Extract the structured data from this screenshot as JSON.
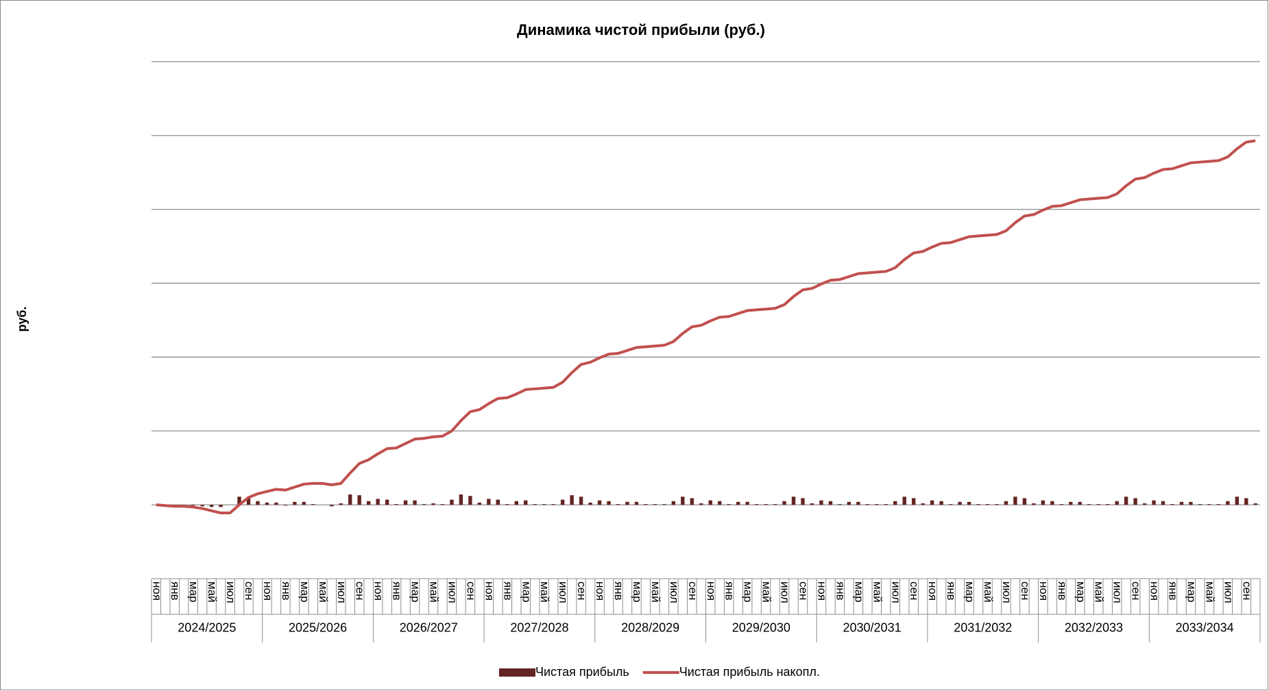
{
  "chart_data": {
    "type": "bar-line",
    "title": "Динамика чистой прибыли (руб.)",
    "y_label": "руб.",
    "categories": [
      "ноя",
      null,
      "янв",
      null,
      "мар",
      null,
      "май",
      null,
      "июл",
      null,
      "сен",
      null,
      "ноя",
      null,
      "янв",
      null,
      "мар",
      null,
      "май",
      null,
      "июл",
      null,
      "сен",
      null,
      "ноя",
      null,
      "янв",
      null,
      "мар",
      null,
      "май",
      null,
      "июл",
      null,
      "сен",
      null,
      "ноя",
      null,
      "янв",
      null,
      "мар",
      null,
      "май",
      null,
      "июл",
      null,
      "сен",
      null,
      "ноя",
      null,
      "янв",
      null,
      "мар",
      null,
      "май",
      null,
      "июл",
      null,
      "сен",
      null,
      "ноя",
      null,
      "янв",
      null,
      "мар",
      null,
      "май",
      null,
      "июл",
      null,
      "сен",
      null,
      "ноя",
      null,
      "янв",
      null,
      "мар",
      null,
      "май",
      null,
      "июл",
      null,
      "сен",
      null,
      "ноя",
      null,
      "янв",
      null,
      "мар",
      null,
      "май",
      null,
      "июл",
      null,
      "сен",
      null,
      "ноя",
      null,
      "янв",
      null,
      "мар",
      null,
      "май",
      null,
      "июл",
      null,
      "сен",
      null,
      "ноя",
      null,
      "янв",
      null,
      "мар",
      null,
      "май",
      null,
      "июл",
      null,
      "сен",
      null
    ],
    "groups": [
      "2024/2025",
      "2025/2026",
      "2026/2027",
      "2027/2028",
      "2028/2029",
      "2029/2030",
      "2030/2031",
      "2031/2032",
      "2032/2033",
      "2033/2034"
    ],
    "ylim": [
      -1,
      6
    ],
    "yticks": [
      0,
      1,
      2,
      3,
      4,
      5,
      6
    ],
    "grid": true,
    "legend": "bottom",
    "series": [
      {
        "name": "Чистая прибыль",
        "type": "bar",
        "color": "#632523",
        "values": [
          0,
          -0.01,
          -0.01,
          0,
          -0.01,
          -0.02,
          -0.03,
          -0.03,
          0,
          0.11,
          0.1,
          0.05,
          0.03,
          0.03,
          -0.01,
          0.04,
          0.04,
          0.01,
          0,
          -0.02,
          0.02,
          0.14,
          0.13,
          0.05,
          0.08,
          0.07,
          0.01,
          0.06,
          0.06,
          0.01,
          0.02,
          0.01,
          0.07,
          0.14,
          0.12,
          0.03,
          0.08,
          0.07,
          0.01,
          0.05,
          0.06,
          0.01,
          0.01,
          0.01,
          0.07,
          0.13,
          0.11,
          0.03,
          0.06,
          0.05,
          0.01,
          0.04,
          0.04,
          0.01,
          0.01,
          0.01,
          0.05,
          0.11,
          0.09,
          0.02,
          0.06,
          0.05,
          0.01,
          0.04,
          0.04,
          0.01,
          0.01,
          0.01,
          0.05,
          0.11,
          0.09,
          0.02,
          0.06,
          0.05,
          0.01,
          0.04,
          0.04,
          0.01,
          0.01,
          0.01,
          0.05,
          0.11,
          0.09,
          0.02,
          0.06,
          0.05,
          0.01,
          0.04,
          0.04,
          0.01,
          0.01,
          0.01,
          0.05,
          0.11,
          0.09,
          0.02,
          0.06,
          0.05,
          0.01,
          0.04,
          0.04,
          0.01,
          0.01,
          0.01,
          0.05,
          0.11,
          0.09,
          0.02,
          0.06,
          0.05,
          0.01,
          0.04,
          0.04,
          0.01,
          0.01,
          0.01,
          0.05,
          0.11,
          0.09,
          0.02
        ]
      },
      {
        "name": "Чистая прибыль накопл.",
        "type": "line",
        "color": "#c0504d",
        "values": [
          0,
          -0.01,
          -0.02,
          -0.02,
          -0.03,
          -0.05,
          -0.08,
          -0.11,
          -0.11,
          0,
          0.1,
          0.15,
          0.18,
          0.21,
          0.2,
          0.24,
          0.28,
          0.29,
          0.29,
          0.27,
          0.29,
          0.43,
          0.56,
          0.61,
          0.69,
          0.76,
          0.77,
          0.83,
          0.89,
          0.9,
          0.92,
          0.93,
          1,
          1.14,
          1.26,
          1.29,
          1.37,
          1.44,
          1.45,
          1.5,
          1.56,
          1.57,
          1.58,
          1.59,
          1.66,
          1.79,
          1.9,
          1.93,
          1.99,
          2.04,
          2.05,
          2.09,
          2.13,
          2.14,
          2.15,
          2.16,
          2.21,
          2.32,
          2.41,
          2.43,
          2.49,
          2.54,
          2.55,
          2.59,
          2.63,
          2.64,
          2.65,
          2.66,
          2.71,
          2.82,
          2.91,
          2.93,
          2.99,
          3.04,
          3.05,
          3.09,
          3.13,
          3.14,
          3.15,
          3.16,
          3.21,
          3.32,
          3.41,
          3.43,
          3.49,
          3.54,
          3.55,
          3.59,
          3.63,
          3.64,
          3.65,
          3.66,
          3.71,
          3.82,
          3.91,
          3.93,
          3.99,
          4.04,
          4.05,
          4.09,
          4.13,
          4.14,
          4.15,
          4.16,
          4.21,
          4.32,
          4.41,
          4.43,
          4.49,
          4.54,
          4.55,
          4.59,
          4.63,
          4.64,
          4.65,
          4.66,
          4.71,
          4.82,
          4.91,
          4.93
        ]
      }
    ]
  }
}
